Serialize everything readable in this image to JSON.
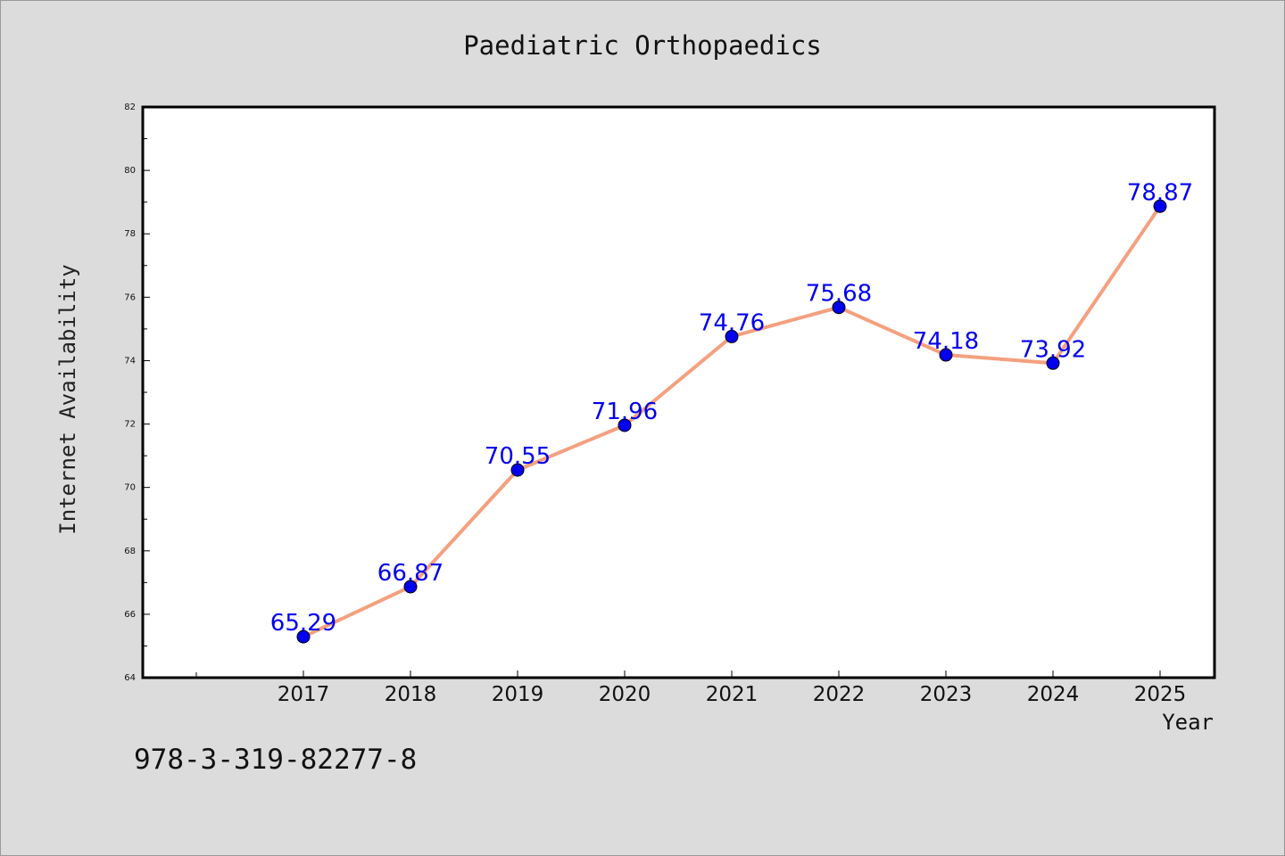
{
  "chart_data": {
    "type": "line",
    "title": "Paediatric Orthopaedics",
    "xlabel": "Year",
    "ylabel": "Internet Availability",
    "categories": [
      "2017",
      "2018",
      "2019",
      "2020",
      "2021",
      "2022",
      "2023",
      "2024",
      "2025"
    ],
    "series": [
      {
        "values": [
          65.29,
          66.87,
          70.55,
          71.96,
          74.76,
          75.68,
          74.18,
          73.92,
          78.87
        ],
        "data_labels": [
          "65.29",
          "66.87",
          "70.55",
          "71.96",
          "74.76",
          "75.68",
          "74.18",
          "73.92",
          "78.87"
        ]
      }
    ],
    "ylim": [
      64,
      82
    ],
    "yticks": [
      "64",
      "66",
      "68",
      "70",
      "72",
      "74",
      "76",
      "78",
      "80",
      "82"
    ],
    "grid": false,
    "colors": {
      "line": "#f4a07e",
      "marker": "#0000ee",
      "data_label": "#0000ee",
      "background": "#dcdcdc",
      "plot_area": "#ffffff"
    }
  },
  "footnote": "978-3-319-82277-8"
}
